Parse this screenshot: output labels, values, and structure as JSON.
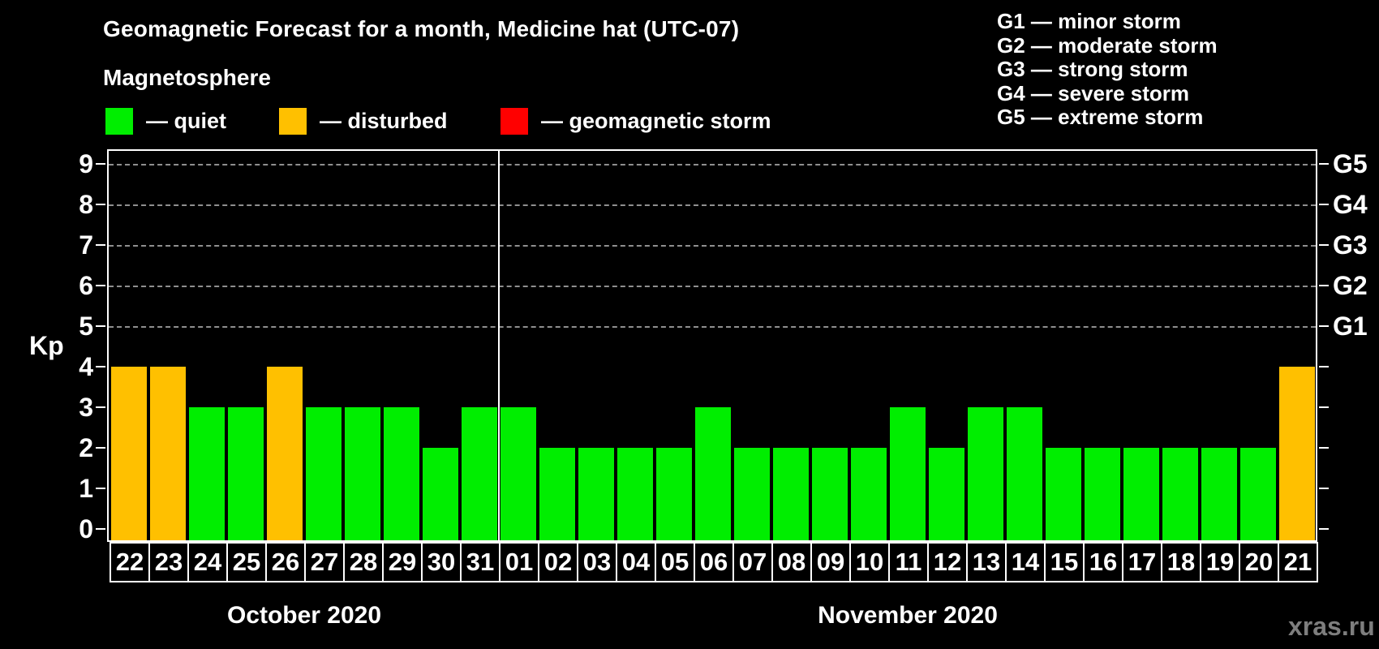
{
  "title": "Geomagnetic Forecast for a month, Medicine hat (UTC-07)",
  "subtitle": "Magnetosphere",
  "condition_legend": [
    {
      "name": "quiet",
      "label": "— quiet",
      "color": "#00ee00"
    },
    {
      "name": "disturbed",
      "label": "— disturbed",
      "color": "#ffc000"
    },
    {
      "name": "geomagnetic-storm",
      "label": "— geomagnetic storm",
      "color": "#ff0000"
    }
  ],
  "storm_scale_legend": [
    "G1 — minor storm",
    "G2 — moderate storm",
    "G3 — strong storm",
    "G4 — severe storm",
    "G5 — extreme storm"
  ],
  "watermark": "xras.ru",
  "chart_data": {
    "type": "bar",
    "title": "Geomagnetic Forecast for a month, Medicine hat (UTC-07)",
    "ylabel": "Kp",
    "ylim": [
      0,
      9
    ],
    "yticks": [
      0,
      1,
      2,
      3,
      4,
      5,
      6,
      7,
      8,
      9
    ],
    "gridlines_at": [
      5,
      6,
      7,
      8,
      9
    ],
    "grid": "dashed horizontal at storm levels only",
    "right_axis": {
      "values": [
        5,
        6,
        7,
        8,
        9
      ],
      "labels": [
        "G1",
        "G2",
        "G3",
        "G4",
        "G5"
      ]
    },
    "categories": [
      "22",
      "23",
      "24",
      "25",
      "26",
      "27",
      "28",
      "29",
      "30",
      "31",
      "01",
      "02",
      "03",
      "04",
      "05",
      "06",
      "07",
      "08",
      "09",
      "10",
      "11",
      "12",
      "13",
      "14",
      "15",
      "16",
      "17",
      "18",
      "19",
      "20",
      "21"
    ],
    "values": [
      4,
      4,
      3,
      3,
      4,
      3,
      3,
      3,
      2,
      3,
      3,
      2,
      2,
      2,
      2,
      3,
      2,
      2,
      2,
      2,
      3,
      2,
      3,
      3,
      2,
      2,
      2,
      2,
      2,
      2,
      4
    ],
    "states": [
      "disturbed",
      "disturbed",
      "quiet",
      "quiet",
      "disturbed",
      "quiet",
      "quiet",
      "quiet",
      "quiet",
      "quiet",
      "quiet",
      "quiet",
      "quiet",
      "quiet",
      "quiet",
      "quiet",
      "quiet",
      "quiet",
      "quiet",
      "quiet",
      "quiet",
      "quiet",
      "quiet",
      "quiet",
      "quiet",
      "quiet",
      "quiet",
      "quiet",
      "quiet",
      "quiet",
      "disturbed"
    ],
    "state_colors": {
      "quiet": "#00ee00",
      "disturbed": "#ffc000",
      "storm": "#ff0000"
    },
    "months": [
      {
        "label": "October 2020",
        "from": 0,
        "to": 9
      },
      {
        "label": "November 2020",
        "from": 10,
        "to": 30
      }
    ],
    "separator_after_index": 9,
    "legend_position": "top-left and top-right"
  }
}
